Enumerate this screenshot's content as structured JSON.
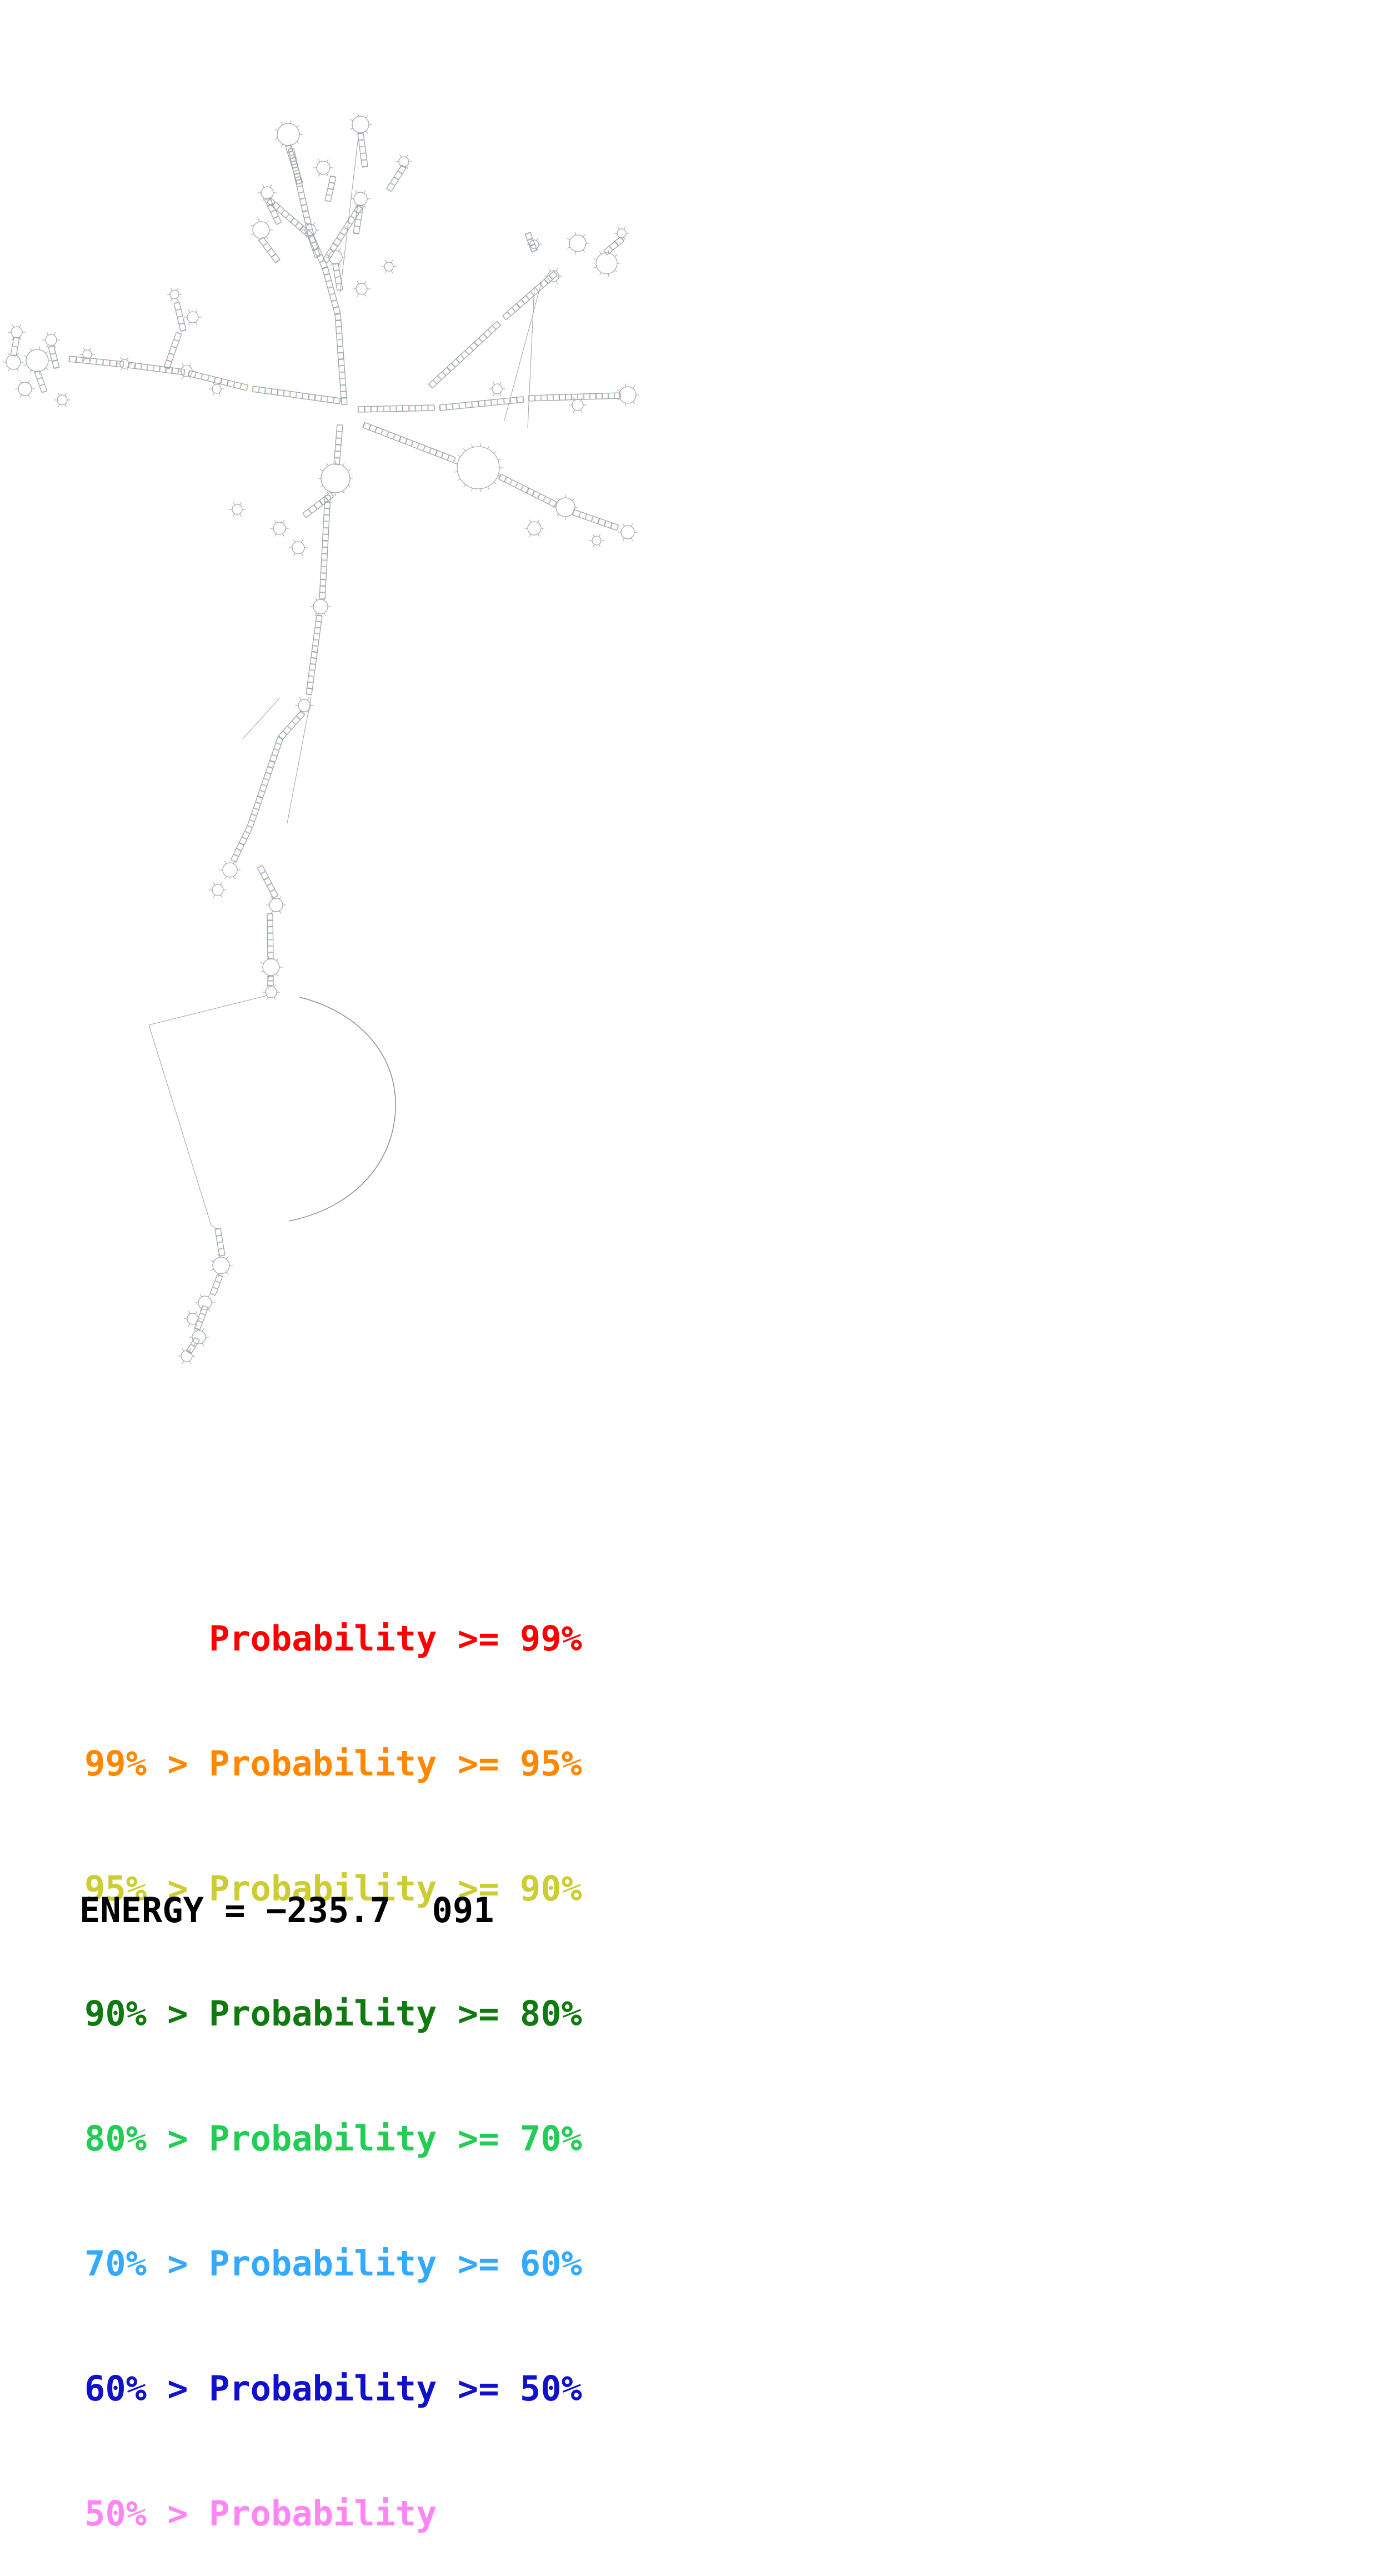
{
  "figure": {
    "kind": "RNA secondary structure probability plot"
  },
  "legend": {
    "items": [
      {
        "text": "      Probability >= 99%",
        "color": "#ff0000"
      },
      {
        "text": "99% > Probability >= 95%",
        "color": "#ff8800"
      },
      {
        "text": "95% > Probability >= 90%",
        "color": "#cccc33"
      },
      {
        "text": "90% > Probability >= 80%",
        "color": "#107a10"
      },
      {
        "text": "80% > Probability >= 70%",
        "color": "#22cc55"
      },
      {
        "text": "70% > Probability >= 60%",
        "color": "#33aaff"
      },
      {
        "text": "60% > Probability >= 50%",
        "color": "#1111cc"
      },
      {
        "text": "50% > Probability",
        "color": "#ff85f5"
      }
    ]
  },
  "energy": {
    "text": "ENERGY = −235.7  091"
  }
}
